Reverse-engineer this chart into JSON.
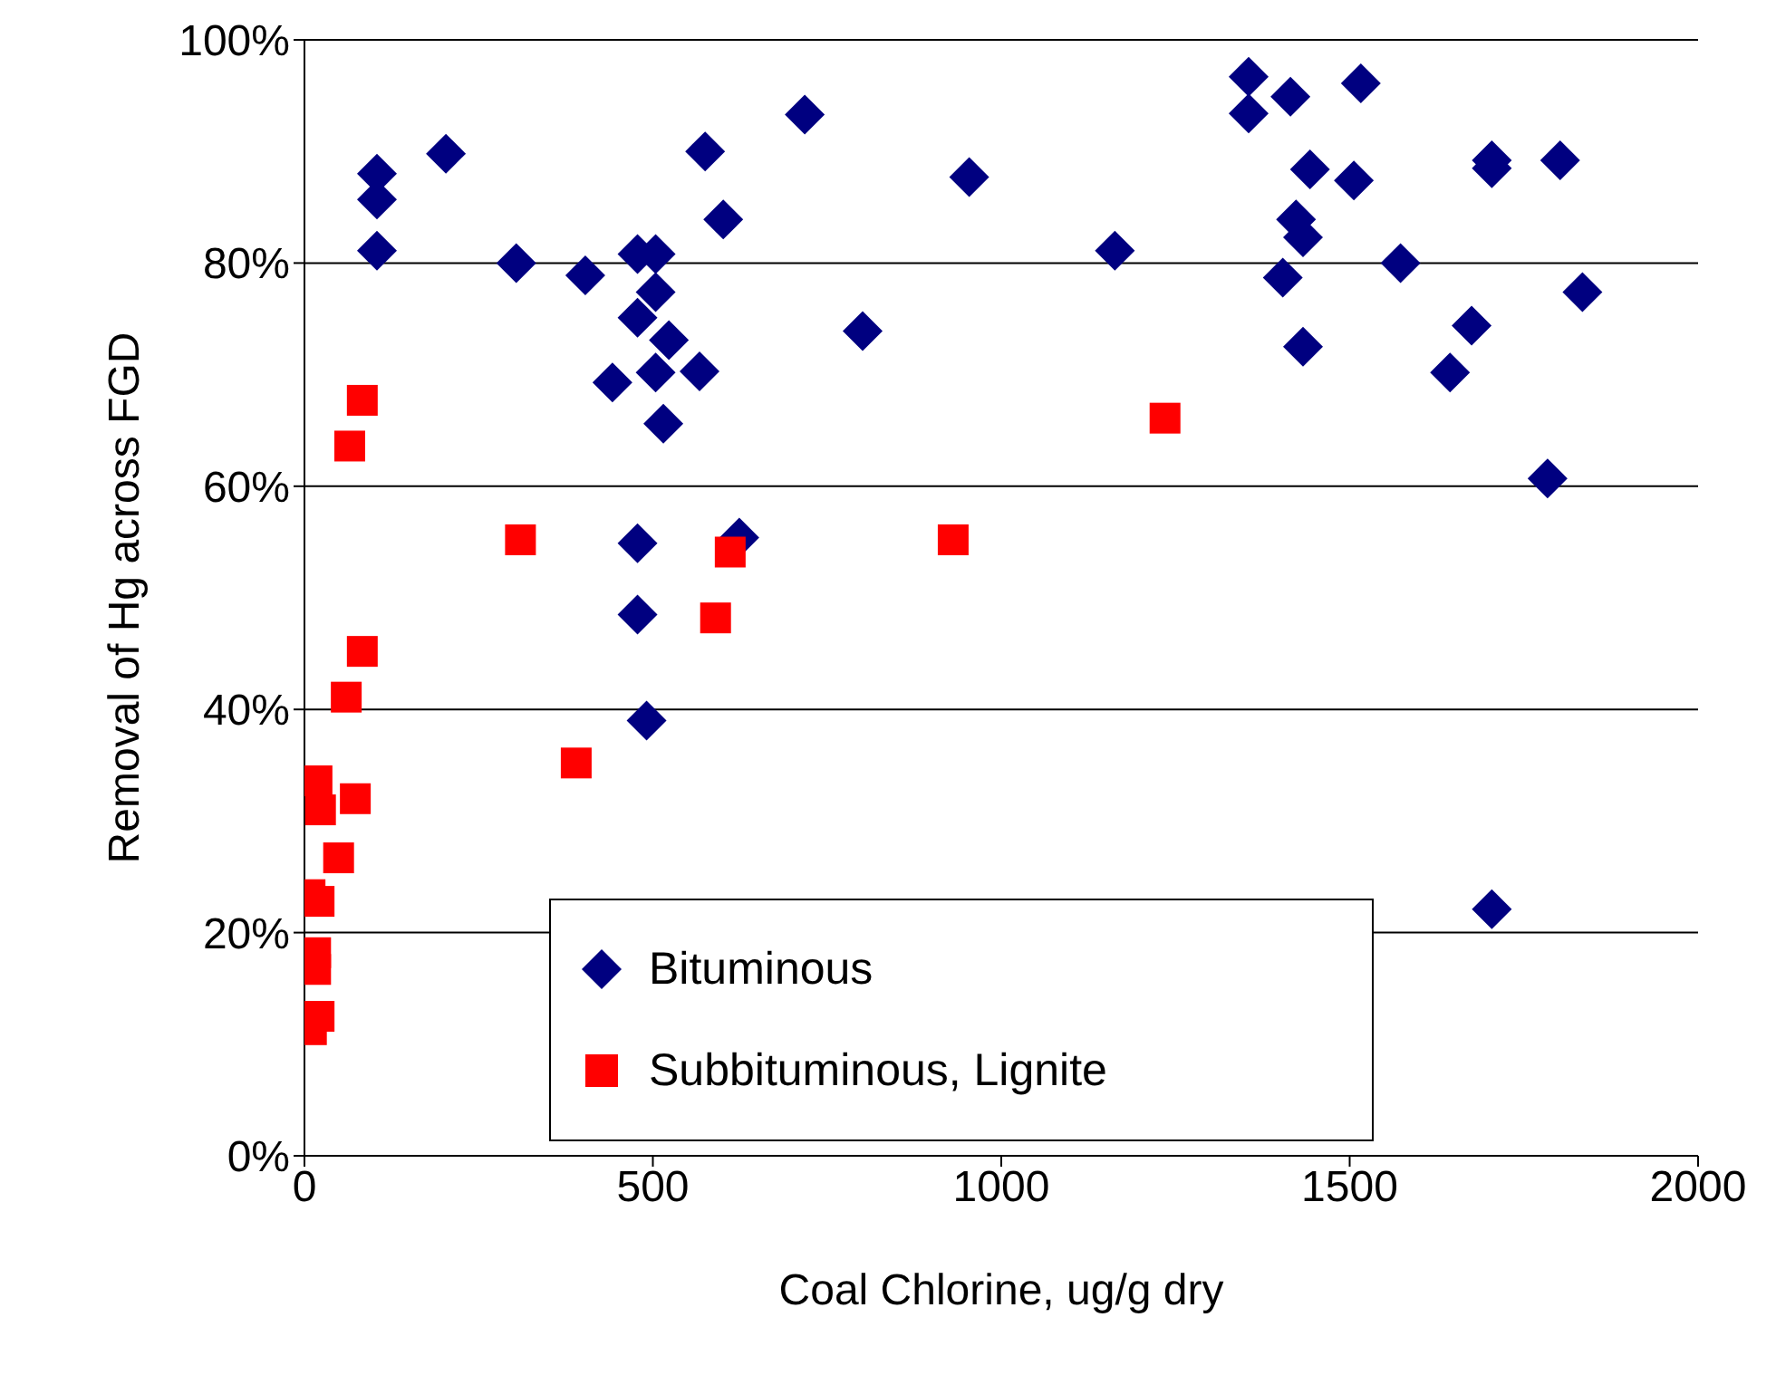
{
  "chart_data": {
    "type": "scatter",
    "xlabel": "Coal Chlorine, ug/g dry",
    "ylabel": "Removal of Hg across FGD",
    "xlim": [
      0,
      2000
    ],
    "xticks": [
      0,
      500,
      1000,
      1500,
      2000
    ],
    "ylim": [
      0,
      100
    ],
    "yticks": [
      {
        "value": 0,
        "label": "0%"
      },
      {
        "value": 20,
        "label": "20%"
      },
      {
        "value": 40,
        "label": "40%"
      },
      {
        "value": 60,
        "label": "60%"
      },
      {
        "value": 80,
        "label": "80%"
      },
      {
        "value": 100,
        "label": "100%"
      }
    ],
    "grid": "y",
    "legend": "bottom",
    "series": [
      {
        "name": "Bituminous",
        "color": "#000080",
        "marker": "diamond",
        "x": [
          104,
          104,
          104,
          203,
          304,
          403,
          442,
          478,
          504,
          504,
          478,
          523,
          504,
          515,
          567,
          575,
          601,
          718,
          801,
          954,
          1163,
          478,
          624,
          478,
          491,
          1355,
          1355,
          1415,
          1516,
          1443,
          1506,
          1704,
          1704,
          1802,
          1423,
          1433,
          1404,
          1573,
          1834,
          1675,
          1433,
          1644,
          1784,
          1704
        ],
        "values": [
          88.0,
          85.7,
          81.1,
          89.8,
          80.0,
          78.9,
          69.3,
          80.8,
          80.8,
          77.4,
          75.1,
          73.1,
          70.2,
          65.6,
          70.3,
          90.0,
          83.9,
          93.3,
          73.9,
          87.7,
          81.1,
          54.9,
          55.4,
          48.5,
          39.0,
          96.7,
          93.4,
          94.9,
          96.1,
          88.4,
          87.4,
          89.2,
          88.5,
          89.2,
          83.9,
          82.3,
          78.7,
          80.0,
          77.4,
          74.4,
          72.5,
          70.2,
          60.7,
          22.1
        ]
      },
      {
        "name": "Subbituminous, Lignite",
        "color": "#ff0000",
        "marker": "square",
        "x": [
          83,
          65,
          83,
          60,
          73,
          18,
          23,
          49,
          21,
          8,
          16,
          16,
          21,
          10,
          310,
          390,
          590,
          611,
          931,
          1235
        ],
        "values": [
          67.7,
          63.6,
          45.2,
          41.1,
          32.0,
          33.6,
          31.0,
          26.7,
          22.8,
          23.4,
          18.2,
          16.7,
          12.5,
          11.3,
          55.2,
          35.2,
          48.2,
          54.1,
          55.2,
          66.1
        ]
      }
    ]
  }
}
